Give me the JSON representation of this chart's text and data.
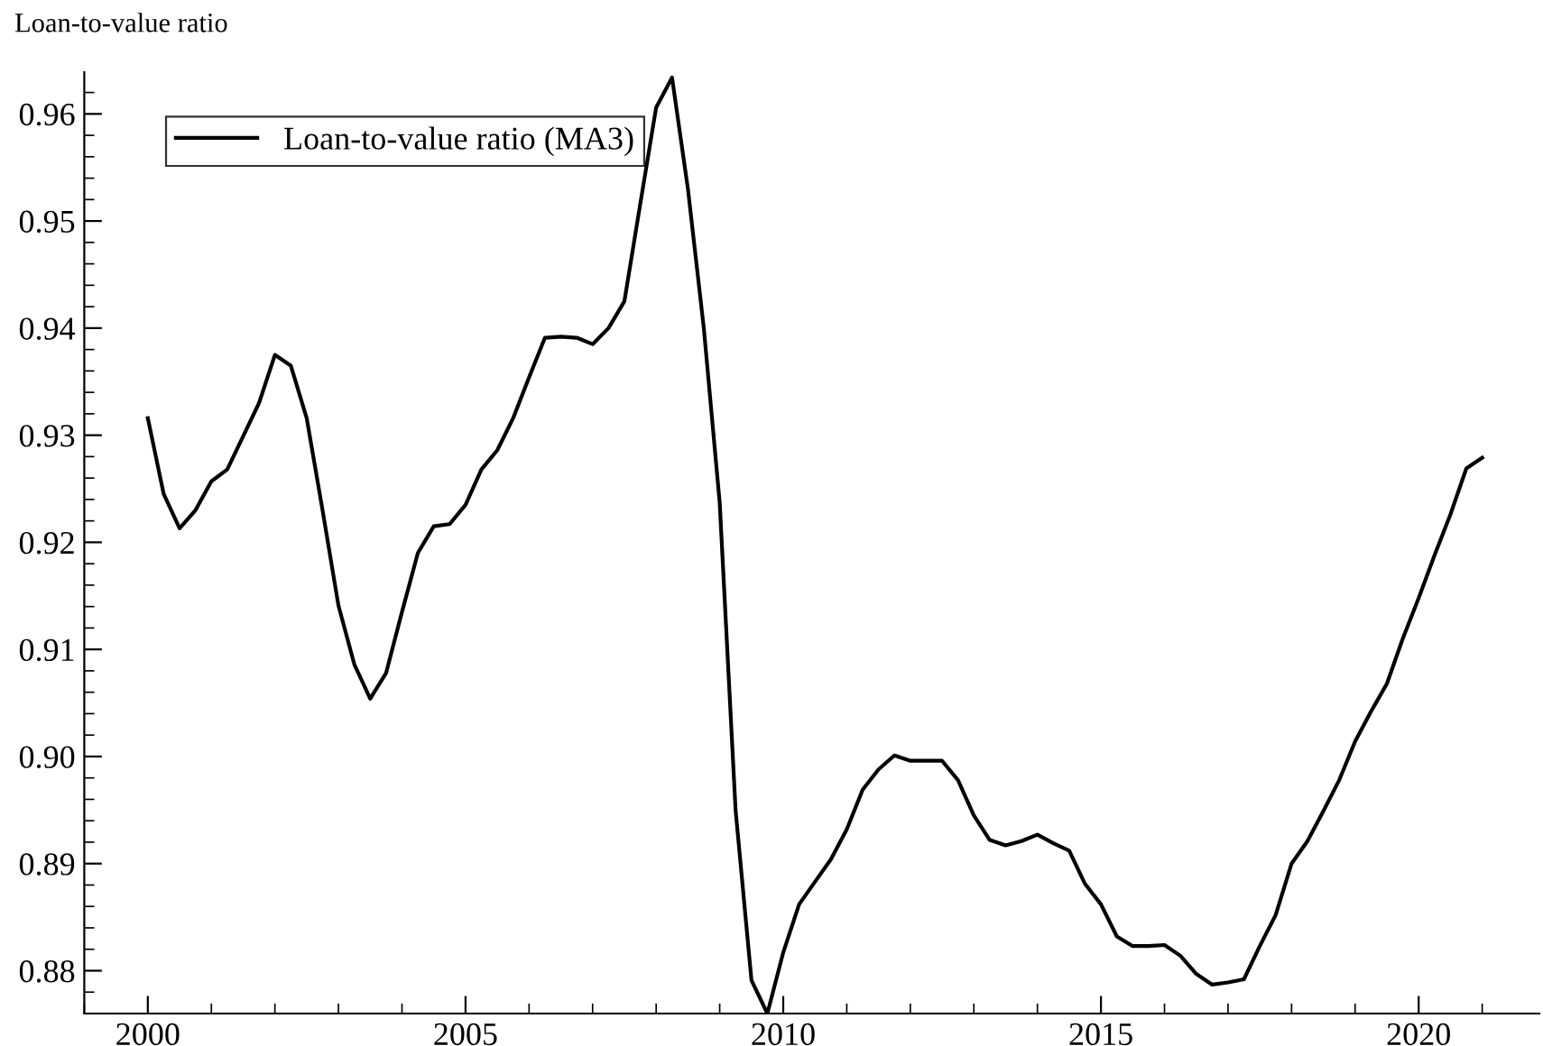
{
  "chart_data": {
    "type": "line",
    "ylabel": "Loan-to-value ratio",
    "x": [
      2000,
      2000.25,
      2000.5,
      2000.75,
      2001,
      2001.25,
      2001.5,
      2001.75,
      2002,
      2002.25,
      2002.5,
      2002.75,
      2003,
      2003.25,
      2003.5,
      2003.75,
      2004,
      2004.25,
      2004.5,
      2004.75,
      2005,
      2005.25,
      2005.5,
      2005.75,
      2006,
      2006.25,
      2006.5,
      2006.75,
      2007,
      2007.25,
      2007.5,
      2007.75,
      2008,
      2008.25,
      2008.5,
      2008.75,
      2009,
      2009.25,
      2009.5,
      2009.75,
      2010,
      2010.25,
      2010.5,
      2010.75,
      2011,
      2011.25,
      2011.5,
      2011.75,
      2012,
      2012.25,
      2012.5,
      2012.75,
      2013,
      2013.25,
      2013.5,
      2013.75,
      2014,
      2014.25,
      2014.5,
      2014.75,
      2015,
      2015.25,
      2015.5,
      2015.75,
      2016,
      2016.25,
      2016.5,
      2016.75,
      2017,
      2017.25,
      2017.5,
      2017.75,
      2018,
      2018.25,
      2018.5,
      2018.75,
      2019,
      2019.25,
      2019.5,
      2019.75,
      2020,
      2020.25,
      2020.5,
      2020.75,
      2021
    ],
    "series": [
      {
        "name": "Loan-to-value ratio (MA3)",
        "color": "#000000",
        "values": [
          0.9316,
          0.9245,
          0.9213,
          0.923,
          0.9257,
          0.9268,
          0.9299,
          0.933,
          0.9375,
          0.9365,
          0.9316,
          0.923,
          0.9141,
          0.9086,
          0.9054,
          0.9078,
          0.9135,
          0.919,
          0.9215,
          0.9217,
          0.9235,
          0.9268,
          0.9286,
          0.9316,
          0.9354,
          0.9391,
          0.9392,
          0.9391,
          0.9385,
          0.94,
          0.9425,
          0.9516,
          0.9606,
          0.9634,
          0.953,
          0.94,
          0.9237,
          0.895,
          0.8791,
          0.876,
          0.8817,
          0.8862,
          0.8883,
          0.8904,
          0.8932,
          0.8969,
          0.8988,
          0.9001,
          0.8996,
          0.8996,
          0.8996,
          0.8978,
          0.8945,
          0.8922,
          0.8917,
          0.8921,
          0.8927,
          0.8919,
          0.8912,
          0.8881,
          0.8862,
          0.8832,
          0.8823,
          0.8823,
          0.8824,
          0.8814,
          0.8797,
          0.8787,
          0.8789,
          0.8792,
          0.8823,
          0.8852,
          0.89,
          0.8921,
          0.8949,
          0.8978,
          0.9014,
          0.9042,
          0.9068,
          0.911,
          0.9148,
          0.9188,
          0.9226,
          0.9269,
          0.9279
        ]
      }
    ],
    "xlim": [
      1999,
      2021.9
    ],
    "xticks": [
      2000,
      2005,
      2010,
      2015,
      2020
    ],
    "ylim": [
      0.876,
      0.9639
    ],
    "yticks": [
      0.88,
      0.89,
      {
        "value": 0.9,
        "label": "0.90"
      },
      0.91,
      0.92,
      0.93,
      0.94,
      0.95,
      0.96
    ],
    "grid": false,
    "legend": "top left",
    "line_style": "solid",
    "marker": "none"
  }
}
